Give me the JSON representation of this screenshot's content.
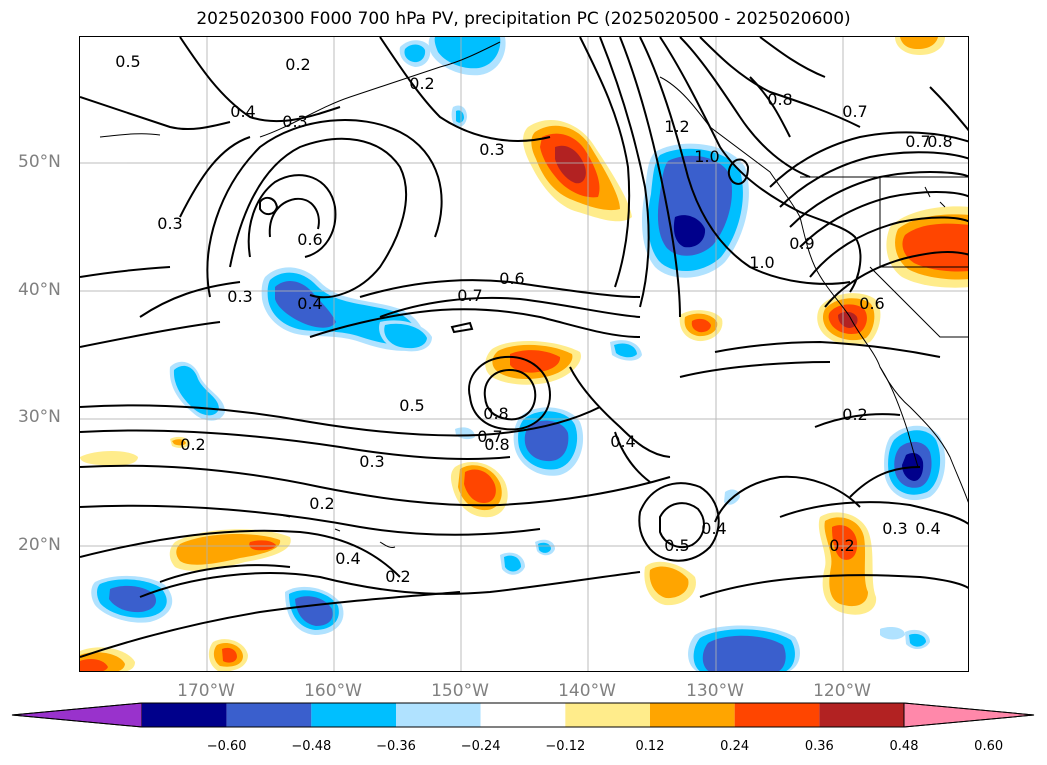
{
  "title": "2025020300 F000 700 hPa PV, precipitation PC (2025020500 - 2025020600)",
  "map": {
    "lat_labels": [
      {
        "text": "50°N",
        "value": 50
      },
      {
        "text": "40°N",
        "value": 40
      },
      {
        "text": "30°N",
        "value": 30
      },
      {
        "text": "20°N",
        "value": 20
      }
    ],
    "lon_labels": [
      {
        "text": "170°W",
        "value": -170
      },
      {
        "text": "160°W",
        "value": -160
      },
      {
        "text": "150°W",
        "value": -150
      },
      {
        "text": "140°W",
        "value": -140
      },
      {
        "text": "130°W",
        "value": -130
      },
      {
        "text": "120°W",
        "value": -120
      }
    ],
    "extent": {
      "lon_min": -180,
      "lon_max": -110,
      "lat_min": 10,
      "lat_max": 60
    },
    "gridlines": true,
    "contour_labels": [
      "0.5",
      "0.2",
      "0.2",
      "0.4",
      "0.3",
      "0.3",
      "1.2",
      "1.0",
      "0.8",
      "0.7",
      "0.7",
      "0.8",
      "0.3",
      "0.6",
      "0.3",
      "0.4",
      "0.7",
      "0.6",
      "1.0",
      "0.9",
      "0.6",
      "0.8",
      "0.5",
      "0.8",
      "0.7",
      "0.4",
      "0.2",
      "0.3",
      "0.2",
      "0.4",
      "0.2",
      "0.5",
      "0.4",
      "0.2",
      "0.3",
      "0.4",
      "0.2"
    ]
  },
  "colorbar": {
    "ticks": [
      "−0.60",
      "−0.48",
      "−0.36",
      "−0.24",
      "−0.12",
      "0.12",
      "0.24",
      "0.36",
      "0.48",
      "0.60"
    ],
    "tick_values": [
      -0.6,
      -0.48,
      -0.36,
      -0.24,
      -0.12,
      0.12,
      0.24,
      0.36,
      0.48,
      0.6
    ],
    "colors": [
      "#9932cc",
      "#00008b",
      "#3a5fcd",
      "#00bfff",
      "#b0e2ff",
      "#ffffff",
      "#ffec8b",
      "#ffa500",
      "#ff4500",
      "#b22222",
      "#ff88aa"
    ]
  }
}
